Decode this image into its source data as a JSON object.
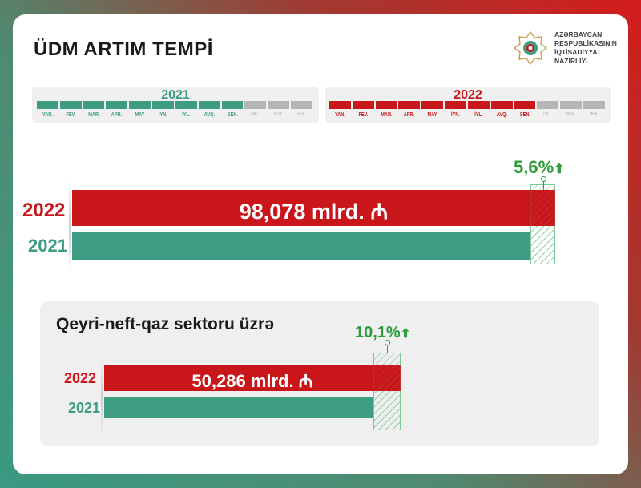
{
  "title": "ÜDM ARTIM TEMPİ",
  "logo": {
    "lines": [
      "AZƏRBAYCAN",
      "RESPUBLİKASININ",
      "İQTİSADİYYAT",
      "NAZİRLİYİ"
    ]
  },
  "colors": {
    "red": "#c8161b",
    "green": "#3d9c82"
  },
  "panels": [
    {
      "year": "2021",
      "color": "#3d9c82",
      "months": [
        "YAN.",
        "FEV.",
        "MAR.",
        "APR.",
        "MAY",
        "İYN.",
        "İYL.",
        "AVQ.",
        "SEN.",
        "OKT.",
        "NOY.",
        "DEK."
      ],
      "active": 9
    },
    {
      "year": "2022",
      "color": "#c8161b",
      "months": [
        "YAN.",
        "FEV.",
        "MAR.",
        "APR.",
        "MAY",
        "İYN.",
        "İYL.",
        "AVQ.",
        "SEN.",
        "OKT.",
        "NOY.",
        "DEK."
      ],
      "active": 9
    }
  ],
  "main": {
    "year_2022": "2022",
    "year_2021": "2021",
    "value": "98,078 mlrd.",
    "currency": "₼",
    "growth": "5,6%",
    "arrow": "⬆"
  },
  "sector": {
    "title": "Qeyri-neft-qaz sektoru üzrə",
    "year_2022": "2022",
    "year_2021": "2021",
    "value": "50,286 mlrd.",
    "currency": "₼",
    "growth": "10,1%",
    "arrow": "⬆"
  }
}
